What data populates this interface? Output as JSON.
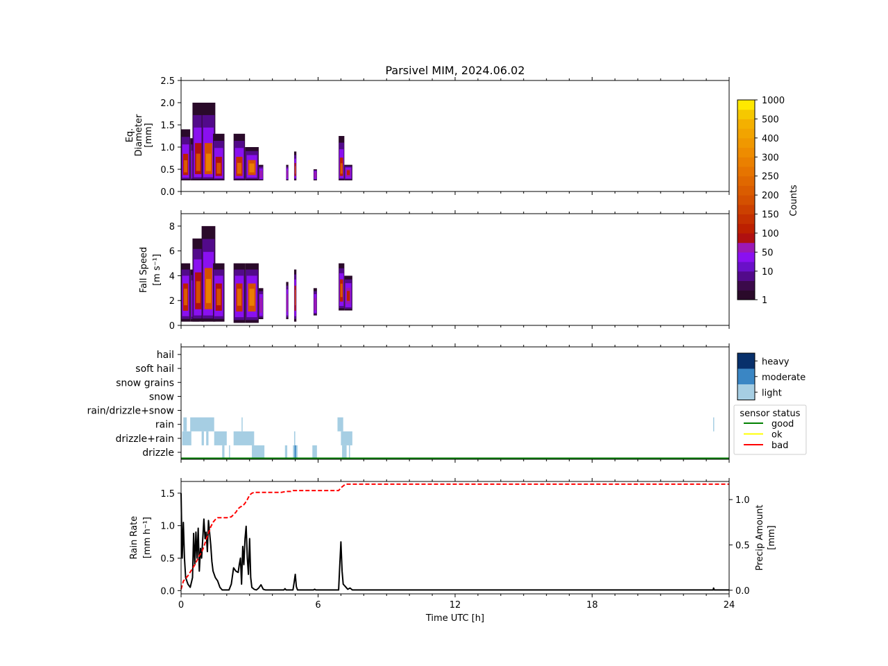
{
  "title": "Parsivel MIM, 2024.06.02",
  "x_axis": {
    "label": "Time UTC [h]",
    "range": [
      0,
      24
    ],
    "ticks": [
      0,
      6,
      12,
      18,
      24
    ],
    "minor_step": 1
  },
  "colorbar": {
    "label": "Counts",
    "levels": [
      "1",
      "2",
      "5",
      "10",
      "20",
      "50",
      "75",
      "100",
      "125",
      "150",
      "175",
      "200",
      "225",
      "250",
      "275",
      "300",
      "350",
      "400",
      "450",
      "500",
      "750",
      "1000"
    ],
    "tick_labels": [
      {
        "level": 0,
        "text": "1"
      },
      {
        "level": 3,
        "text": "10"
      },
      {
        "level": 5,
        "text": "50"
      },
      {
        "level": 7,
        "text": "100"
      },
      {
        "level": 9,
        "text": "150"
      },
      {
        "level": 11,
        "text": "200"
      },
      {
        "level": 13,
        "text": "250"
      },
      {
        "level": 15,
        "text": "300"
      },
      {
        "level": 17,
        "text": "400"
      },
      {
        "level": 19,
        "text": "500"
      },
      {
        "level": 21,
        "text": "1000"
      }
    ],
    "colors": [
      "#2a0a2a",
      "#3b0a4a",
      "#520a8a",
      "#6a10c8",
      "#8a10f0",
      "#9c18b4",
      "#b01010",
      "#bc2000",
      "#c43000",
      "#cc4000",
      "#d45000",
      "#da5c00",
      "#e06800",
      "#e67400",
      "#ea8000",
      "#ee8c00",
      "#f09800",
      "#f2a400",
      "#f4b000",
      "#f6c800",
      "#ffe800"
    ]
  },
  "chart_data": [
    {
      "type": "heatmap",
      "name": "diameter",
      "ylabel": [
        "Eq.",
        "Diameter",
        "[mm]"
      ],
      "ylim": [
        0,
        2.5
      ],
      "yticks": [
        "0.0",
        "0.5",
        "1.0",
        "1.5",
        "2.0",
        "2.5"
      ],
      "events": [
        {
          "t0": 0.0,
          "t1": 0.4,
          "ymin": 0.25,
          "ymax": 1.4,
          "core": 0.55,
          "peak": 0.55,
          "level": 11
        },
        {
          "t0": 0.4,
          "t1": 0.8,
          "ymin": 0.25,
          "ymax": 1.2,
          "core": 0.5,
          "peak": 0.5,
          "level": 9
        },
        {
          "t0": 0.5,
          "t1": 1.0,
          "ymin": 0.25,
          "ymax": 2.0,
          "core": 0.6,
          "peak": 0.6,
          "level": 10
        },
        {
          "t0": 0.9,
          "t1": 1.5,
          "ymin": 0.25,
          "ymax": 2.0,
          "core": 0.6,
          "peak": 0.6,
          "level": 14
        },
        {
          "t0": 1.4,
          "t1": 1.9,
          "ymin": 0.25,
          "ymax": 1.3,
          "core": 0.5,
          "peak": 0.5,
          "level": 10
        },
        {
          "t0": 2.3,
          "t1": 2.8,
          "ymin": 0.25,
          "ymax": 1.3,
          "core": 0.5,
          "peak": 0.5,
          "level": 12
        },
        {
          "t0": 2.8,
          "t1": 3.4,
          "ymin": 0.25,
          "ymax": 1.0,
          "core": 0.55,
          "peak": 0.55,
          "level": 14
        },
        {
          "t0": 3.4,
          "t1": 3.6,
          "ymin": 0.25,
          "ymax": 0.6,
          "core": 0.4,
          "peak": 0.4,
          "level": 5
        },
        {
          "t0": 4.6,
          "t1": 4.7,
          "ymin": 0.25,
          "ymax": 0.6,
          "core": 0.4,
          "peak": 0.4,
          "level": 5
        },
        {
          "t0": 4.95,
          "t1": 5.05,
          "ymin": 0.25,
          "ymax": 0.9,
          "core": 0.5,
          "peak": 0.5,
          "level": 11
        },
        {
          "t0": 5.8,
          "t1": 5.95,
          "ymin": 0.25,
          "ymax": 0.5,
          "core": 0.4,
          "peak": 0.4,
          "level": 5
        },
        {
          "t0": 6.9,
          "t1": 7.15,
          "ymin": 0.25,
          "ymax": 1.25,
          "core": 0.5,
          "peak": 0.5,
          "level": 11
        },
        {
          "t0": 7.15,
          "t1": 7.5,
          "ymin": 0.25,
          "ymax": 0.6,
          "core": 0.45,
          "peak": 0.45,
          "level": 7
        }
      ]
    },
    {
      "type": "heatmap",
      "name": "fall-speed",
      "ylabel": [
        "Fall Speed",
        "[m s⁻¹]"
      ],
      "ylim": [
        0,
        9
      ],
      "yticks": [
        "0",
        "2",
        "4",
        "6",
        "8"
      ],
      "events": [
        {
          "t0": 0.0,
          "t1": 0.4,
          "ymin": 0.3,
          "ymax": 5.0,
          "core": 2.5,
          "peak": 2.5,
          "level": 11
        },
        {
          "t0": 0.4,
          "t1": 0.8,
          "ymin": 0.3,
          "ymax": 4.5,
          "core": 2.3,
          "peak": 2.3,
          "level": 9
        },
        {
          "t0": 0.5,
          "t1": 1.0,
          "ymin": 0.3,
          "ymax": 7.0,
          "core": 2.8,
          "peak": 2.8,
          "level": 10
        },
        {
          "t0": 0.9,
          "t1": 1.5,
          "ymin": 0.3,
          "ymax": 8.0,
          "core": 2.8,
          "peak": 2.8,
          "level": 14
        },
        {
          "t0": 1.4,
          "t1": 1.9,
          "ymin": 0.3,
          "ymax": 5.0,
          "core": 2.5,
          "peak": 2.5,
          "level": 10
        },
        {
          "t0": 2.3,
          "t1": 2.8,
          "ymin": 0.2,
          "ymax": 5.0,
          "core": 2.5,
          "peak": 2.5,
          "level": 12
        },
        {
          "t0": 2.8,
          "t1": 3.4,
          "ymin": 0.2,
          "ymax": 5.0,
          "core": 2.5,
          "peak": 2.5,
          "level": 14
        },
        {
          "t0": 3.4,
          "t1": 3.6,
          "ymin": 0.5,
          "ymax": 3.0,
          "core": 1.8,
          "peak": 1.8,
          "level": 5
        },
        {
          "t0": 4.6,
          "t1": 4.7,
          "ymin": 0.5,
          "ymax": 3.5,
          "core": 2.0,
          "peak": 2.0,
          "level": 5
        },
        {
          "t0": 4.95,
          "t1": 5.05,
          "ymin": 0.3,
          "ymax": 4.5,
          "core": 2.5,
          "peak": 2.5,
          "level": 11
        },
        {
          "t0": 5.8,
          "t1": 5.95,
          "ymin": 0.8,
          "ymax": 3.0,
          "core": 1.8,
          "peak": 1.8,
          "level": 5
        },
        {
          "t0": 6.9,
          "t1": 7.15,
          "ymin": 1.2,
          "ymax": 5.0,
          "core": 3.0,
          "peak": 3.0,
          "level": 11
        },
        {
          "t0": 7.15,
          "t1": 7.5,
          "ymin": 1.2,
          "ymax": 4.0,
          "core": 2.5,
          "peak": 2.5,
          "level": 7
        }
      ]
    },
    {
      "type": "heatmap",
      "name": "precip-type",
      "categories": [
        "drizzle",
        "drizzle+rain",
        "rain",
        "rain/drizzle+snow",
        "snow",
        "snow grains",
        "soft hail",
        "hail"
      ],
      "xlim": [
        0,
        24
      ],
      "intensity_legend": [
        {
          "name": "heavy",
          "color": "#08306b"
        },
        {
          "name": "moderate",
          "color": "#3a86c4"
        },
        {
          "name": "light",
          "color": "#a6cee3"
        }
      ],
      "sensor_status_legend": {
        "title": "sensor status",
        "entries": [
          {
            "name": "good",
            "color": "#008000"
          },
          {
            "name": "ok",
            "color": "#ffff00"
          },
          {
            "name": "bad",
            "color": "#ff0000"
          }
        ]
      },
      "sensor_status_value": "good",
      "cells": [
        {
          "cat": "rain",
          "t0": 0.1,
          "t1": 0.25,
          "intensity": "light"
        },
        {
          "cat": "rain",
          "t0": 0.4,
          "t1": 1.45,
          "intensity": "light"
        },
        {
          "cat": "rain",
          "t0": 2.65,
          "t1": 2.67,
          "intensity": "light"
        },
        {
          "cat": "rain",
          "t0": 6.85,
          "t1": 7.1,
          "intensity": "light"
        },
        {
          "cat": "rain",
          "t0": 23.3,
          "t1": 23.34,
          "intensity": "light"
        },
        {
          "cat": "drizzle+rain",
          "t0": 0.05,
          "t1": 0.45,
          "intensity": "light"
        },
        {
          "cat": "drizzle+rain",
          "t0": 0.9,
          "t1": 1.0,
          "intensity": "light"
        },
        {
          "cat": "drizzle+rain",
          "t0": 1.1,
          "t1": 1.2,
          "intensity": "light"
        },
        {
          "cat": "drizzle+rain",
          "t0": 1.45,
          "t1": 2.0,
          "intensity": "light"
        },
        {
          "cat": "drizzle+rain",
          "t0": 2.3,
          "t1": 3.2,
          "intensity": "light"
        },
        {
          "cat": "drizzle+rain",
          "t0": 4.95,
          "t1": 5.0,
          "intensity": "light"
        },
        {
          "cat": "drizzle+rain",
          "t0": 7.0,
          "t1": 7.5,
          "intensity": "light"
        },
        {
          "cat": "drizzle",
          "t0": 1.8,
          "t1": 1.9,
          "intensity": "light"
        },
        {
          "cat": "drizzle",
          "t0": 2.1,
          "t1": 2.13,
          "intensity": "light"
        },
        {
          "cat": "drizzle",
          "t0": 3.1,
          "t1": 3.65,
          "intensity": "light"
        },
        {
          "cat": "drizzle",
          "t0": 4.55,
          "t1": 4.65,
          "intensity": "light"
        },
        {
          "cat": "drizzle",
          "t0": 4.9,
          "t1": 5.1,
          "intensity": "light"
        },
        {
          "cat": "drizzle",
          "t0": 4.97,
          "t1": 5.03,
          "intensity": "moderate"
        },
        {
          "cat": "drizzle",
          "t0": 5.75,
          "t1": 5.95,
          "intensity": "light"
        },
        {
          "cat": "drizzle",
          "t0": 7.05,
          "t1": 7.25,
          "intensity": "light"
        },
        {
          "cat": "drizzle",
          "t0": 7.35,
          "t1": 7.4,
          "intensity": "light"
        }
      ]
    },
    {
      "type": "line",
      "name": "rain-rate",
      "ylabel_left": [
        "Rain Rate",
        "[mm h⁻¹]"
      ],
      "ylabel_right": [
        "Precip Amount",
        "[mm]"
      ],
      "ylim_left": [
        -0.05,
        1.68
      ],
      "ylim_right": [
        -0.04,
        1.2
      ],
      "yticks_left": [
        "0.0",
        "0.5",
        "1.0",
        "1.5"
      ],
      "yticks_right": [
        "0.0",
        "0.5",
        "1.0"
      ],
      "series": [
        {
          "axis": "left",
          "color": "#000000",
          "dash": "solid",
          "x": [
            0,
            0.05,
            0.1,
            0.15,
            0.2,
            0.3,
            0.4,
            0.5,
            0.55,
            0.6,
            0.65,
            0.7,
            0.75,
            0.8,
            0.85,
            0.9,
            1.0,
            1.05,
            1.1,
            1.15,
            1.2,
            1.3,
            1.35,
            1.4,
            1.5,
            1.6,
            1.7,
            1.8,
            1.9,
            2.0,
            2.1,
            2.2,
            2.3,
            2.4,
            2.5,
            2.55,
            2.6,
            2.65,
            2.7,
            2.75,
            2.8,
            2.85,
            2.9,
            2.95,
            3.0,
            3.05,
            3.1,
            3.2,
            3.3,
            3.4,
            3.5,
            3.6,
            3.7,
            3.8,
            4.0,
            4.5,
            4.55,
            4.6,
            4.9,
            4.95,
            5.0,
            5.05,
            5.1,
            5.8,
            5.85,
            5.9,
            6.8,
            6.9,
            6.95,
            7.0,
            7.05,
            7.1,
            7.2,
            7.3,
            7.4,
            7.5,
            7.7,
            8.0,
            10,
            12,
            14,
            16,
            18,
            20,
            22,
            23.3,
            23.32,
            23.35,
            24
          ],
          "y": [
            1.5,
            0.5,
            1.05,
            0.5,
            0.2,
            0.1,
            0.05,
            0.2,
            0.88,
            0.4,
            0.9,
            0.5,
            0.96,
            0.3,
            0.65,
            0.5,
            1.1,
            0.8,
            0.9,
            0.6,
            1.08,
            0.7,
            0.45,
            0.3,
            0.2,
            0.15,
            0.05,
            0.01,
            0.01,
            0.01,
            0.01,
            0.1,
            0.35,
            0.3,
            0.28,
            0.4,
            0.5,
            0.1,
            0.68,
            0.4,
            0.8,
            0.99,
            0.5,
            0.25,
            0.8,
            0.2,
            0.05,
            0.02,
            0.01,
            0.04,
            0.09,
            0.02,
            0.01,
            0.01,
            0.01,
            0.01,
            0.03,
            0.01,
            0.01,
            0.12,
            0.25,
            0.06,
            0.01,
            0.01,
            0.02,
            0.01,
            0.01,
            0.01,
            0.4,
            0.75,
            0.3,
            0.1,
            0.06,
            0.02,
            0.04,
            0.01,
            0.01,
            0.01,
            0.01,
            0.01,
            0.01,
            0.01,
            0.01,
            0.01,
            0.01,
            0.01,
            0.04,
            0.01,
            0.01
          ]
        },
        {
          "axis": "right",
          "color": "#ff0000",
          "dash": "dashed",
          "x": [
            0,
            0.1,
            0.2,
            0.3,
            0.4,
            0.5,
            0.6,
            0.7,
            0.8,
            0.9,
            1.0,
            1.1,
            1.2,
            1.3,
            1.4,
            1.5,
            1.6,
            1.7,
            1.8,
            2.0,
            2.2,
            2.4,
            2.5,
            2.6,
            2.7,
            2.8,
            2.9,
            3.0,
            3.1,
            3.2,
            3.4,
            3.6,
            3.8,
            4.0,
            4.2,
            4.4,
            4.6,
            4.8,
            4.9,
            5.0,
            5.1,
            5.3,
            5.6,
            6.0,
            6.5,
            6.8,
            6.9,
            7.0,
            7.1,
            7.2,
            7.4,
            7.6,
            8,
            10,
            12,
            14,
            16,
            18,
            20,
            22,
            24
          ],
          "y": [
            0.01,
            0.1,
            0.13,
            0.16,
            0.2,
            0.24,
            0.28,
            0.33,
            0.38,
            0.42,
            0.48,
            0.56,
            0.63,
            0.7,
            0.75,
            0.78,
            0.8,
            0.8,
            0.8,
            0.8,
            0.81,
            0.86,
            0.9,
            0.92,
            0.93,
            0.96,
            1.0,
            1.05,
            1.07,
            1.08,
            1.08,
            1.08,
            1.08,
            1.08,
            1.08,
            1.08,
            1.09,
            1.09,
            1.1,
            1.1,
            1.1,
            1.1,
            1.1,
            1.1,
            1.1,
            1.1,
            1.1,
            1.13,
            1.15,
            1.17,
            1.17,
            1.17,
            1.17,
            1.17,
            1.17,
            1.17,
            1.17,
            1.17,
            1.17,
            1.17,
            1.17
          ]
        }
      ]
    }
  ]
}
